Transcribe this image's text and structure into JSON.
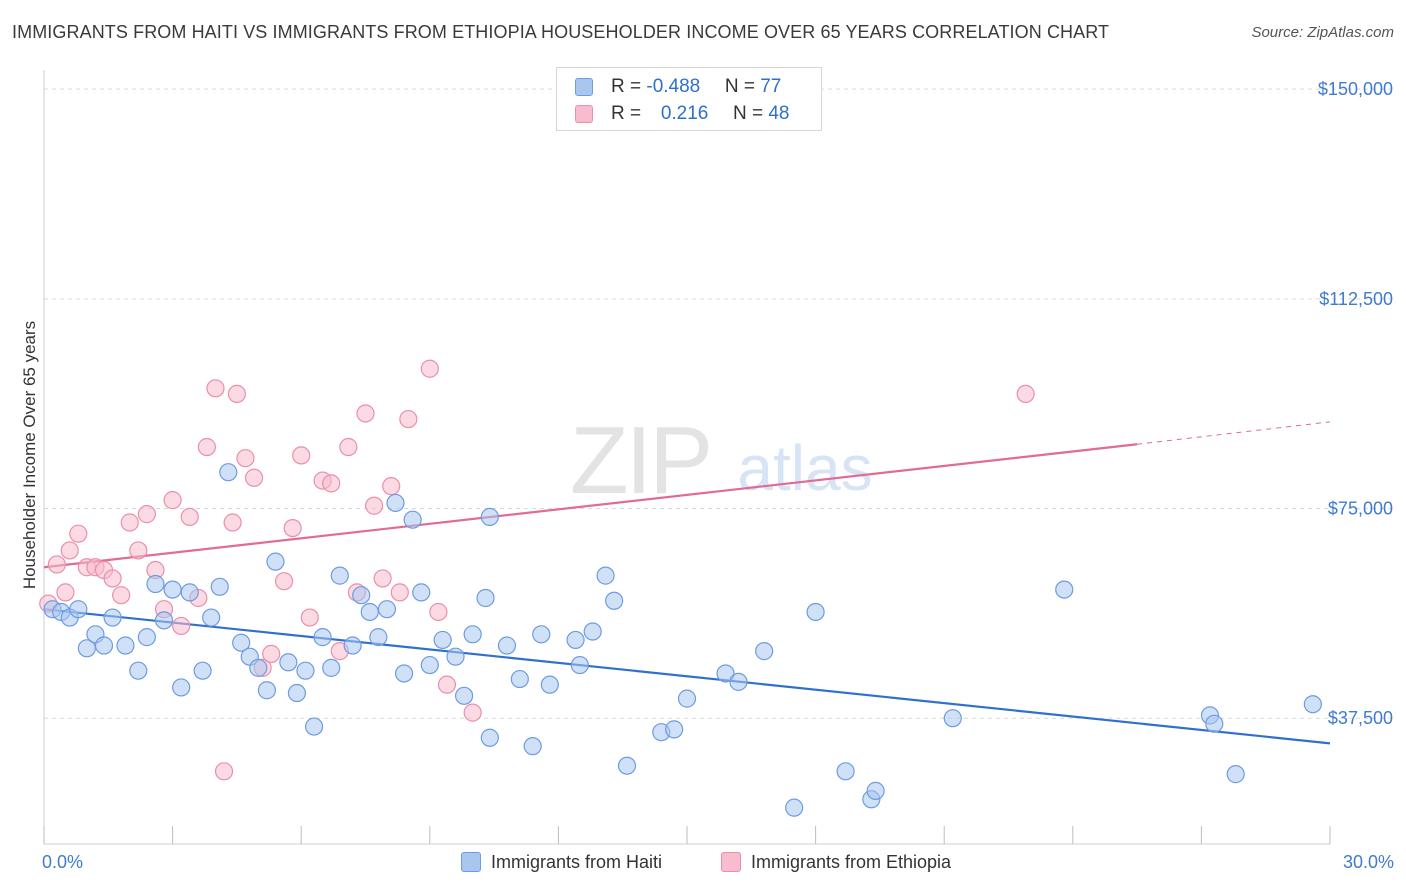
{
  "title": "IMMIGRANTS FROM HAITI VS IMMIGRANTS FROM ETHIOPIA HOUSEHOLDER INCOME OVER 65 YEARS CORRELATION CHART",
  "source": "Source: ZipAtlas.com",
  "watermark": {
    "zip": "ZIP",
    "atlas": "atlas"
  },
  "colors": {
    "haiti_fill": "#a9c6ee",
    "haiti_stroke": "#6d9ce0",
    "haiti_line": "#2f70cf",
    "ethiopia_fill": "#f7bccd",
    "ethiopia_stroke": "#ea8fab",
    "ethiopia_line": "#e06b93",
    "tick_label": "#3f7bd0",
    "grid": "#d9d9d9"
  },
  "legend": {
    "rows": [
      {
        "r_label": "R = ",
        "r_value": "-0.488",
        "n_label": "N = ",
        "n_value": "77"
      },
      {
        "r_label": "R = ",
        "r_value": "0.216",
        "n_label": "N = ",
        "n_value": "48"
      }
    ]
  },
  "chart_data": {
    "type": "scatter",
    "xlabel": "",
    "ylabel": "Householder Income Over 65 years",
    "xlim": [
      0,
      30
    ],
    "ylim": [
      15000,
      152000
    ],
    "x_tick_labels": [
      {
        "value": 0,
        "label": "0.0%"
      },
      {
        "value": 30,
        "label": "30.0%"
      }
    ],
    "y_tick_labels": [
      {
        "value": 37500,
        "label": "$37,500"
      },
      {
        "value": 75000,
        "label": "$75,000"
      },
      {
        "value": 112500,
        "label": "$112,500"
      },
      {
        "value": 150000,
        "label": "$150,000"
      }
    ],
    "grid": true,
    "legend_position": "bottom",
    "series": [
      {
        "name": "Immigrants from Haiti",
        "trend": {
          "x0": 0,
          "y0": 57000,
          "x1": 30,
          "y1": 33000
        },
        "points": [
          [
            0.2,
            57000
          ],
          [
            0.4,
            56500
          ],
          [
            0.6,
            55500
          ],
          [
            0.8,
            57000
          ],
          [
            1.0,
            50000
          ],
          [
            1.2,
            52500
          ],
          [
            1.4,
            50500
          ],
          [
            1.6,
            55500
          ],
          [
            1.9,
            50500
          ],
          [
            2.2,
            46000
          ],
          [
            2.4,
            52000
          ],
          [
            2.6,
            61500
          ],
          [
            2.8,
            55000
          ],
          [
            3.0,
            60500
          ],
          [
            3.2,
            43000
          ],
          [
            3.4,
            60000
          ],
          [
            3.7,
            46000
          ],
          [
            3.9,
            55500
          ],
          [
            4.1,
            61000
          ],
          [
            4.3,
            81500
          ],
          [
            4.6,
            51000
          ],
          [
            4.8,
            48500
          ],
          [
            5.0,
            46500
          ],
          [
            5.2,
            42500
          ],
          [
            5.4,
            65500
          ],
          [
            5.7,
            47500
          ],
          [
            5.9,
            42000
          ],
          [
            6.1,
            46000
          ],
          [
            6.3,
            36000
          ],
          [
            6.5,
            52000
          ],
          [
            6.7,
            46500
          ],
          [
            6.9,
            63000
          ],
          [
            7.2,
            50500
          ],
          [
            7.4,
            59500
          ],
          [
            7.6,
            56500
          ],
          [
            7.8,
            52000
          ],
          [
            8.0,
            57000
          ],
          [
            8.2,
            76000
          ],
          [
            8.4,
            45500
          ],
          [
            8.6,
            73000
          ],
          [
            8.8,
            60000
          ],
          [
            9.0,
            47000
          ],
          [
            9.3,
            51500
          ],
          [
            9.6,
            48500
          ],
          [
            9.8,
            41500
          ],
          [
            10.0,
            52500
          ],
          [
            10.3,
            59000
          ],
          [
            10.4,
            34000
          ],
          [
            10.8,
            50500
          ],
          [
            11.1,
            44500
          ],
          [
            11.4,
            32500
          ],
          [
            11.6,
            52500
          ],
          [
            11.8,
            43500
          ],
          [
            12.4,
            51500
          ],
          [
            12.5,
            47000
          ],
          [
            12.8,
            53000
          ],
          [
            13.1,
            63000
          ],
          [
            13.3,
            58500
          ],
          [
            13.6,
            29000
          ],
          [
            14.4,
            35000
          ],
          [
            14.7,
            35500
          ],
          [
            15.0,
            41000
          ],
          [
            15.9,
            45500
          ],
          [
            16.2,
            44000
          ],
          [
            16.8,
            49500
          ],
          [
            17.5,
            21500
          ],
          [
            18.0,
            56500
          ],
          [
            18.7,
            28000
          ],
          [
            19.3,
            23000
          ],
          [
            19.4,
            24500
          ],
          [
            21.2,
            37500
          ],
          [
            23.8,
            60500
          ],
          [
            27.2,
            38000
          ],
          [
            27.3,
            36500
          ],
          [
            27.8,
            27500
          ],
          [
            29.6,
            40000
          ],
          [
            10.4,
            73500
          ]
        ]
      },
      {
        "name": "Immigrants from Ethiopia",
        "trend": {
          "x0": 0,
          "y0": 64500,
          "x1": 25.5,
          "y1": 86500,
          "x_dash_end": 30,
          "y_dash_end": 90500
        },
        "points": [
          [
            0.1,
            58000
          ],
          [
            0.3,
            65000
          ],
          [
            0.6,
            67500
          ],
          [
            0.8,
            70500
          ],
          [
            1.0,
            64500
          ],
          [
            1.2,
            64500
          ],
          [
            1.4,
            64000
          ],
          [
            1.6,
            62500
          ],
          [
            1.8,
            59500
          ],
          [
            2.0,
            72500
          ],
          [
            2.2,
            67500
          ],
          [
            2.4,
            74000
          ],
          [
            2.6,
            64000
          ],
          [
            2.8,
            57000
          ],
          [
            3.0,
            76500
          ],
          [
            3.2,
            54000
          ],
          [
            3.4,
            73500
          ],
          [
            3.6,
            59000
          ],
          [
            3.8,
            86000
          ],
          [
            4.0,
            96500
          ],
          [
            4.2,
            28000
          ],
          [
            4.4,
            72500
          ],
          [
            4.5,
            95500
          ],
          [
            4.7,
            84000
          ],
          [
            4.9,
            80500
          ],
          [
            5.1,
            46500
          ],
          [
            5.3,
            49000
          ],
          [
            5.6,
            62000
          ],
          [
            5.8,
            71500
          ],
          [
            6.0,
            84500
          ],
          [
            6.2,
            55500
          ],
          [
            6.5,
            80000
          ],
          [
            6.7,
            79500
          ],
          [
            6.9,
            49500
          ],
          [
            7.1,
            86000
          ],
          [
            7.3,
            60000
          ],
          [
            7.5,
            92000
          ],
          [
            7.7,
            75500
          ],
          [
            7.9,
            62500
          ],
          [
            8.1,
            79000
          ],
          [
            8.3,
            60000
          ],
          [
            8.5,
            91000
          ],
          [
            9.0,
            100000
          ],
          [
            9.2,
            56500
          ],
          [
            9.4,
            43500
          ],
          [
            10.0,
            38500
          ],
          [
            22.9,
            95500
          ],
          [
            0.5,
            60000
          ]
        ]
      }
    ]
  },
  "bottom_legend": [
    "Immigrants from Haiti",
    "Immigrants from Ethiopia"
  ]
}
